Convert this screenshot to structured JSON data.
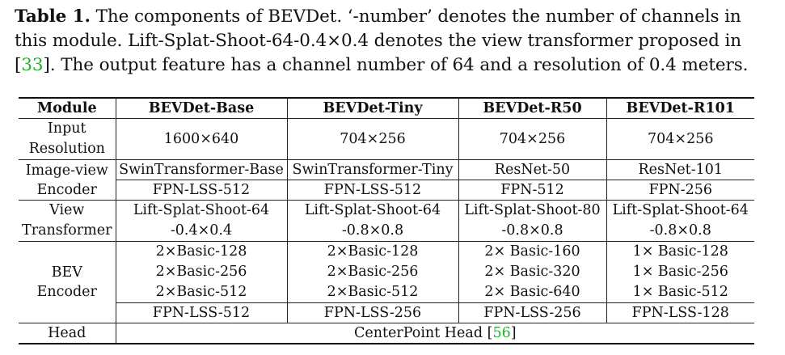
{
  "caption": {
    "label": "Table 1.",
    "text_before_cite": " The components of BEVDet. ‘-number’ denotes the number of channels in this module. Lift-Splat-Shoot-64-0.4×0.4 denotes the view transformer proposed in [",
    "cite1": "33",
    "text_after_cite": "]. The output feature has a channel number of 64 and a resolution of 0.4 meters."
  },
  "table": {
    "headers": [
      "Module",
      "BEVDet-Base",
      "BEVDet-Tiny",
      "BEVDet-R50",
      "BEVDet-R101"
    ],
    "input_resolution": {
      "label_line1": "Input",
      "label_line2": "Resolution",
      "values": [
        "1600×640",
        "704×256",
        "704×256",
        "704×256"
      ]
    },
    "image_view_encoder": {
      "label_line1": "Image-view",
      "label_line2": "Encoder",
      "backbone": [
        "SwinTransformer-Base",
        "SwinTransformer-Tiny",
        "ResNet-50",
        "ResNet-101"
      ],
      "neck": [
        "FPN-LSS-512",
        "FPN-LSS-512",
        "FPN-512",
        "FPN-256"
      ]
    },
    "view_transformer": {
      "label_line1": "View",
      "label_line2": "Transformer",
      "line1": [
        "Lift-Splat-Shoot-64",
        "Lift-Splat-Shoot-64",
        "Lift-Splat-Shoot-80",
        "Lift-Splat-Shoot-64"
      ],
      "line2": [
        "-0.4×0.4",
        "-0.8×0.8",
        "-0.8×0.8",
        "-0.8×0.8"
      ]
    },
    "bev_encoder": {
      "label_line1": "BEV",
      "label_line2": "Encoder",
      "blocks": [
        [
          "2×Basic-128",
          "2×Basic-256",
          "2×Basic-512"
        ],
        [
          "2×Basic-128",
          "2×Basic-256",
          "2×Basic-512"
        ],
        [
          "2× Basic-160",
          "2× Basic-320",
          "2× Basic-640"
        ],
        [
          "1× Basic-128",
          "1× Basic-256",
          "1× Basic-512"
        ]
      ],
      "neck": [
        "FPN-LSS-512",
        "FPN-LSS-256",
        "FPN-LSS-256",
        "FPN-LSS-128"
      ]
    },
    "head": {
      "label": "Head",
      "value_text": "CenterPoint Head [",
      "cite": "56",
      "value_close": "]"
    }
  }
}
